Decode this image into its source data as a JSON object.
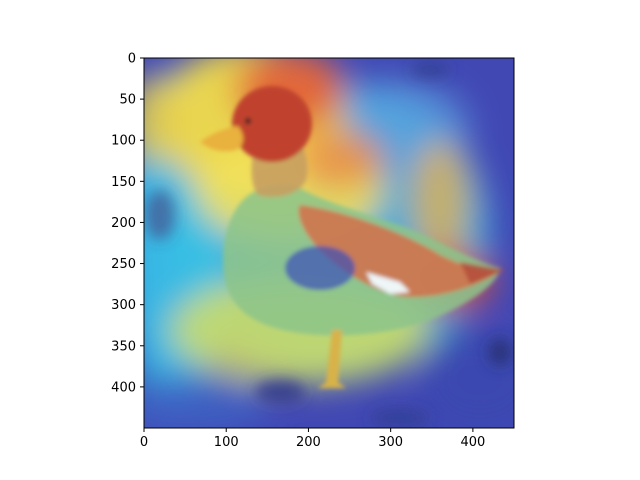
{
  "image_extent": {
    "x": [
      0,
      450
    ],
    "y": [
      450,
      0
    ]
  },
  "x_ticks": [
    {
      "value": 0,
      "label": "0"
    },
    {
      "value": 100,
      "label": "100"
    },
    {
      "value": 200,
      "label": "200"
    },
    {
      "value": 300,
      "label": "300"
    },
    {
      "value": 400,
      "label": "400"
    }
  ],
  "y_ticks": [
    {
      "value": 0,
      "label": "0"
    },
    {
      "value": 50,
      "label": "50"
    },
    {
      "value": 100,
      "label": "100"
    },
    {
      "value": 150,
      "label": "150"
    },
    {
      "value": 200,
      "label": "200"
    },
    {
      "value": 250,
      "label": "250"
    },
    {
      "value": 300,
      "label": "300"
    },
    {
      "value": 350,
      "label": "350"
    },
    {
      "value": 400,
      "label": "400"
    }
  ],
  "colors": {
    "heat_low": "#3a3fb0",
    "heat_mid": "#35c8e8",
    "heat_warm": "#f2e040",
    "heat_high": "#e0382a",
    "axis": "#000000"
  }
}
